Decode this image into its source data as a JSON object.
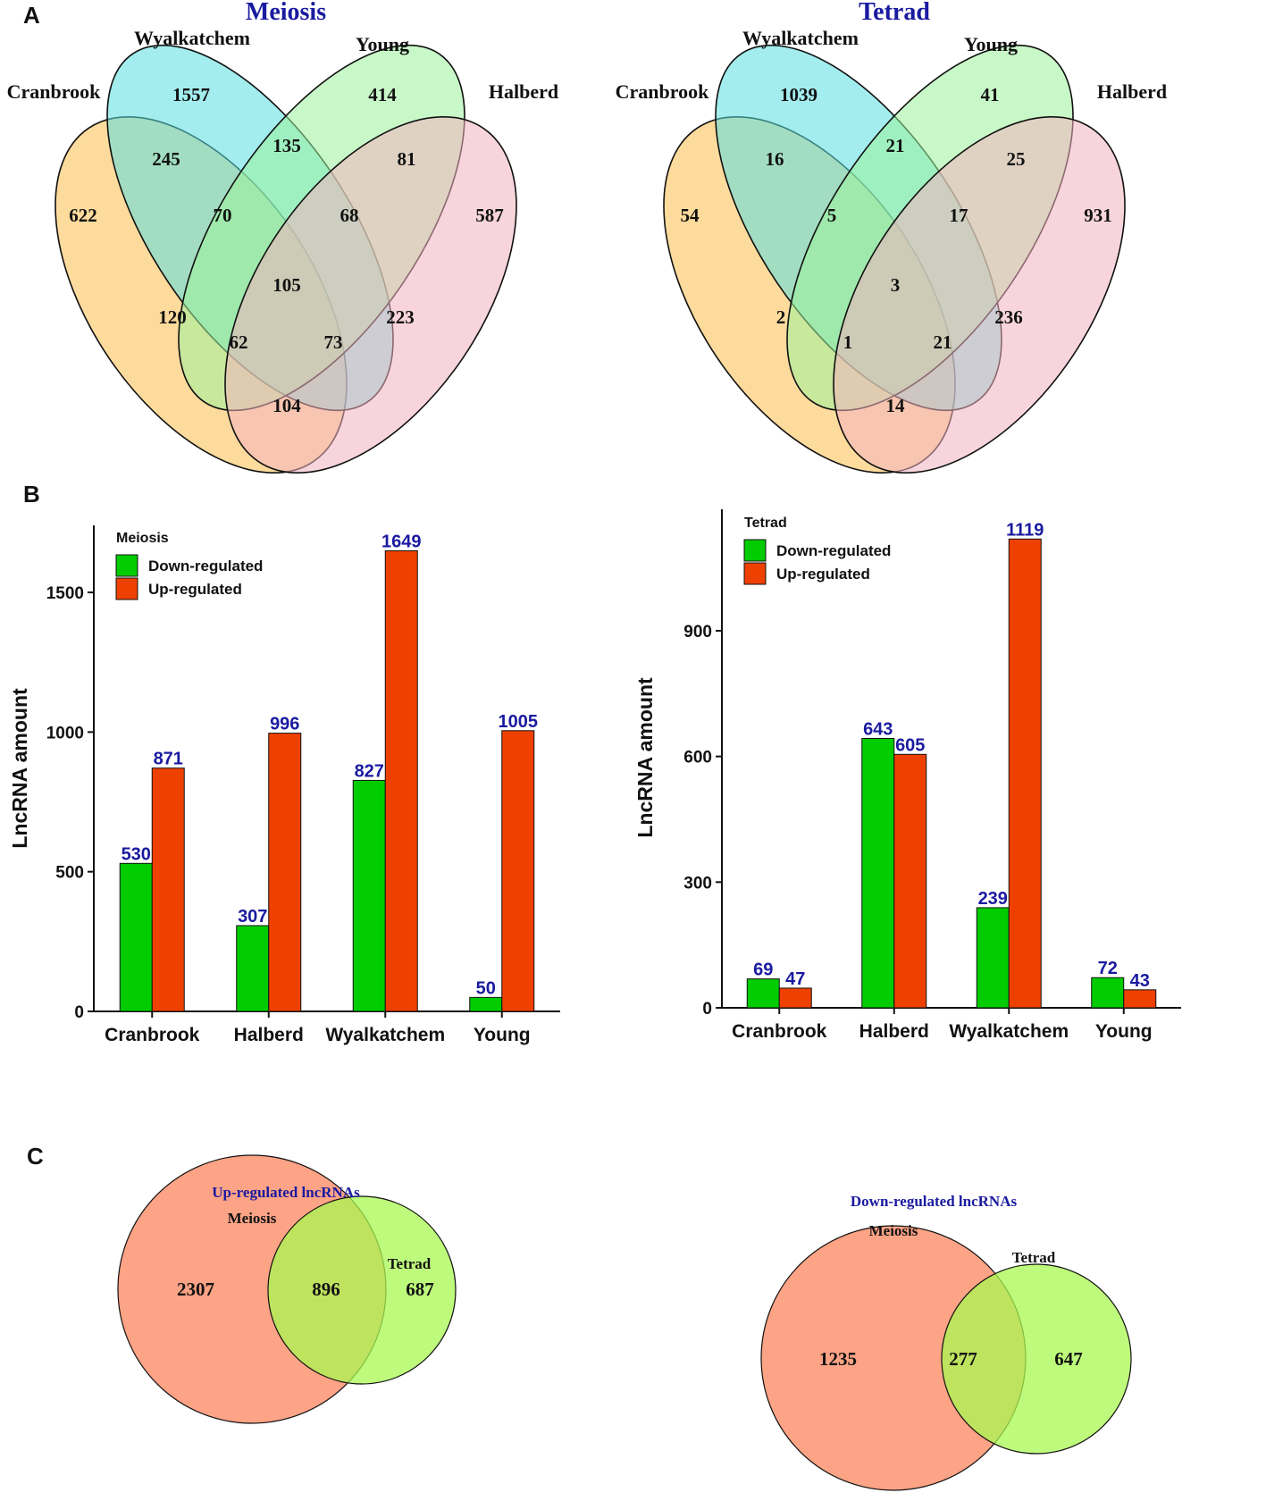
{
  "panels": {
    "a": "A",
    "b": "B",
    "c": "C"
  },
  "colors": {
    "cranbrook": "#fbbe4d",
    "wyalkatchem": "#57dfe0",
    "young": "#9cf29a",
    "halberd": "#f3b2c0",
    "down": "#00cc00",
    "up": "#ee4000",
    "label": "#1a1aa0",
    "meiosis_circle": "#fc8c68",
    "tetrad_circle": "#a8f850"
  },
  "chart_data": [
    {
      "type": "venn",
      "title": "Meiosis",
      "sets": [
        "Cranbrook",
        "Wyalkatchem",
        "Young",
        "Halberd"
      ],
      "regions": {
        "C": 622,
        "W": 1557,
        "Y": 414,
        "H": 587,
        "CW": 245,
        "WY": 135,
        "YH": 81,
        "CY": 120,
        "WH": 223,
        "CH": 104,
        "CWY": 70,
        "WYH": 68,
        "CWH": 73,
        "CYH": 62,
        "CWYH": 105
      }
    },
    {
      "type": "venn",
      "title": "Tetrad",
      "sets": [
        "Cranbrook",
        "Wyalkatchem",
        "Young",
        "Halberd"
      ],
      "regions": {
        "C": 54,
        "W": 1039,
        "Y": 41,
        "H": 931,
        "CW": 16,
        "WY": 21,
        "YH": 25,
        "CY": 2,
        "WH": 236,
        "CH": 14,
        "CWY": 5,
        "WYH": 17,
        "CWH": 21,
        "CYH": 1,
        "CWYH": 3
      }
    },
    {
      "type": "bar",
      "legend_title": "Meiosis",
      "ylabel": "LncRNA amount",
      "categories": [
        "Cranbrook",
        "Halberd",
        "Wyalkatchem",
        "Young"
      ],
      "series": [
        {
          "name": "Down-regulated",
          "values": [
            530,
            307,
            827,
            50
          ]
        },
        {
          "name": "Up-regulated",
          "values": [
            871,
            996,
            1649,
            1005
          ]
        }
      ],
      "ylim": [
        0,
        1740
      ],
      "yticks": [
        0,
        500,
        1000,
        1500
      ]
    },
    {
      "type": "bar",
      "legend_title": "Tetrad",
      "ylabel": "LncRNA amount",
      "categories": [
        "Cranbrook",
        "Halberd",
        "Wyalkatchem",
        "Young"
      ],
      "series": [
        {
          "name": "Down-regulated",
          "values": [
            69,
            643,
            239,
            72
          ]
        },
        {
          "name": "Up-regulated",
          "values": [
            47,
            605,
            1119,
            43
          ]
        }
      ],
      "ylim": [
        0,
        1190
      ],
      "yticks": [
        0,
        300,
        600,
        900
      ]
    },
    {
      "type": "venn",
      "title": "Up-regulated lncRNAs",
      "sets": [
        "Meiosis",
        "Tetrad"
      ],
      "regions": {
        "meiosis_only": 2307,
        "both": 896,
        "tetrad_only": 687
      }
    },
    {
      "type": "venn",
      "title": "Down-regulated lncRNAs",
      "sets": [
        "Meiosis",
        "Tetrad"
      ],
      "regions": {
        "meiosis_only": 1235,
        "both": 277,
        "tetrad_only": 647
      }
    }
  ]
}
